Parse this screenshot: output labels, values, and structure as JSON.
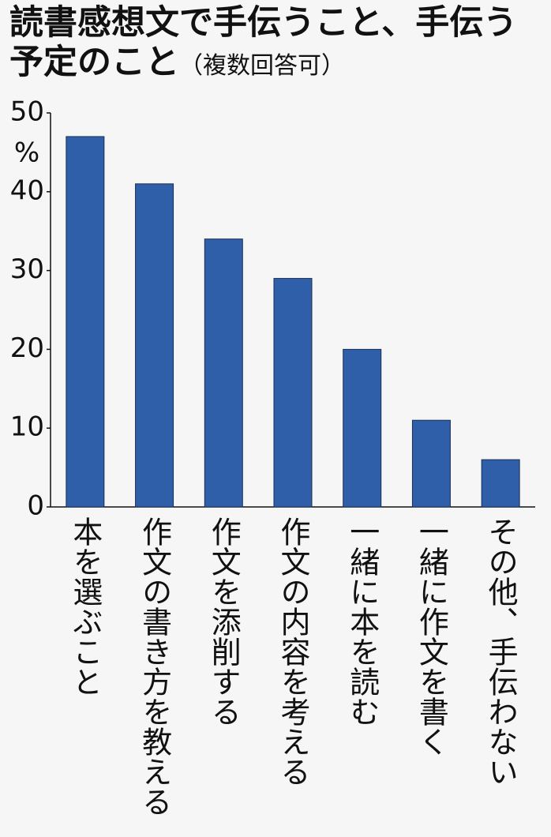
{
  "chart_data": {
    "type": "bar",
    "title": "読書感想文で手伝うこと、手伝う予定のこと",
    "subtitle": "（複数回答可）",
    "y_unit": "%",
    "categories": [
      "本を選ぶこと",
      "作文の書き方を教える",
      "作文を添削する",
      "作文の内容を考える",
      "一緒に本を読む",
      "一緒に作文を書く",
      "その他、手伝わない"
    ],
    "values": [
      47,
      41,
      34,
      29,
      20,
      11,
      6
    ],
    "color": "#2f5fa8",
    "ylim": [
      0,
      50
    ],
    "yticks": [
      0,
      10,
      20,
      30,
      40,
      50
    ],
    "grid": false
  }
}
